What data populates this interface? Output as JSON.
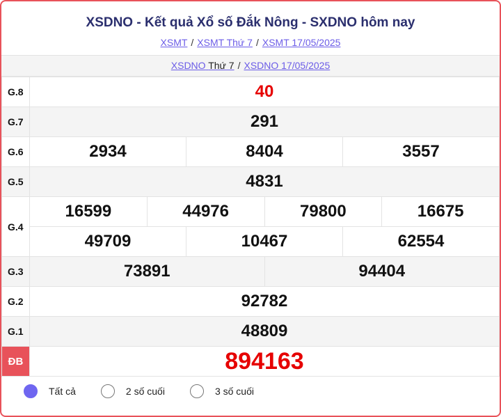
{
  "title": "XSDNO - Kết quả Xổ số Đắk Nông - SXDNO hôm nay",
  "breadcrumb": [
    "XSMT",
    "XSMT Thứ 7",
    "XSMT 17/05/2025"
  ],
  "sub": {
    "link1": "XSDNO",
    "link1_plain": "Thứ 7",
    "link2": "XSDNO 17/05/2025"
  },
  "prizes": {
    "g8": {
      "label": "G.8",
      "values": [
        "40"
      ]
    },
    "g7": {
      "label": "G.7",
      "values": [
        "291"
      ]
    },
    "g6": {
      "label": "G.6",
      "values": [
        "2934",
        "8404",
        "3557"
      ]
    },
    "g5": {
      "label": "G.5",
      "values": [
        "4831"
      ]
    },
    "g4": {
      "label": "G.4",
      "values": [
        "16599",
        "44976",
        "79800",
        "16675",
        "49709",
        "10467",
        "62554"
      ]
    },
    "g3": {
      "label": "G.3",
      "values": [
        "73891",
        "94404"
      ]
    },
    "g2": {
      "label": "G.2",
      "values": [
        "92782"
      ]
    },
    "g1": {
      "label": "G.1",
      "values": [
        "48809"
      ]
    },
    "db": {
      "label": "ĐB",
      "values": [
        "894163"
      ]
    }
  },
  "filter": {
    "options": [
      "Tất cả",
      "2 số cuối",
      "3 số cuối"
    ],
    "selected": "Tất cả"
  },
  "colors": {
    "accent": "#e8525a",
    "title": "#2b2f6e",
    "highlight": "#e60000",
    "radio": "#6f66f0",
    "link": "#6b5ce7"
  }
}
